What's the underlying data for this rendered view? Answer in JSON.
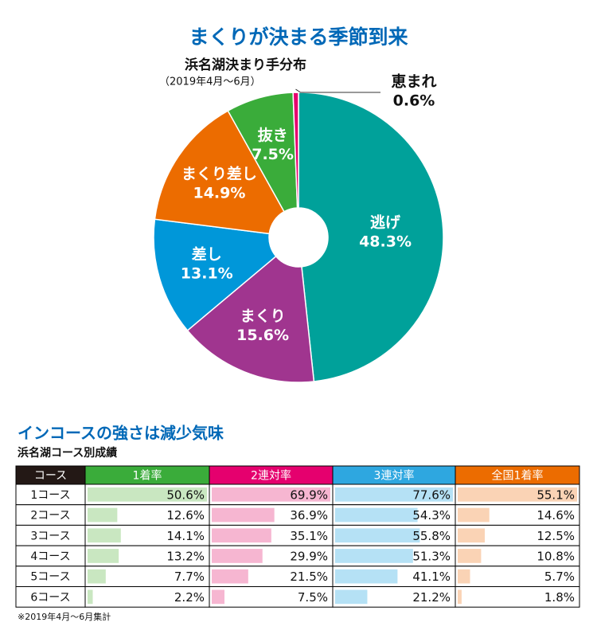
{
  "chart_data": {
    "type": "pie",
    "title": "まくりが決まる季節到来",
    "subtitle": "浜名湖決まり手分布",
    "note": "（2019年4月〜6月）",
    "categories": [
      "逃げ",
      "まくり",
      "差し",
      "まくり差し",
      "抜き",
      "恵まれ"
    ],
    "values": [
      48.3,
      15.6,
      13.1,
      14.9,
      7.5,
      0.6
    ],
    "value_labels": [
      "48.3%",
      "15.6%",
      "13.1%",
      "14.9%",
      "7.5%",
      "0.6%"
    ],
    "colors": [
      "#00a19a",
      "#a0358f",
      "#0097d9",
      "#ec6c00",
      "#3aac3a",
      "#e5006e"
    ]
  },
  "table": {
    "title": "インコースの強さは減少気味",
    "subtitle": "浜名湖コース別成績",
    "headers": [
      "コース",
      "1着率",
      "2連対率",
      "3連対率",
      "全国1着率"
    ],
    "header_colors": [
      "#231815",
      "#3aac3a",
      "#e5006e",
      "#2ea7e0",
      "#ec6c00"
    ],
    "bar_colors": [
      "#c9e7c1",
      "#f6b6d1",
      "#b5e1f5",
      "#fad3b5"
    ],
    "rows": [
      {
        "course": "1コース",
        "values": [
          50.6,
          69.9,
          77.6,
          55.1
        ],
        "value_labels": [
          "50.6%",
          "69.9%",
          "77.6%",
          "55.1%"
        ]
      },
      {
        "course": "2コース",
        "values": [
          12.6,
          36.9,
          54.3,
          14.6
        ],
        "value_labels": [
          "12.6%",
          "36.9%",
          "54.3%",
          "14.6%"
        ]
      },
      {
        "course": "3コース",
        "values": [
          14.1,
          35.1,
          55.8,
          12.5
        ],
        "value_labels": [
          "14.1%",
          "35.1%",
          "55.8%",
          "12.5%"
        ]
      },
      {
        "course": "4コース",
        "values": [
          13.2,
          29.9,
          51.3,
          10.8
        ],
        "value_labels": [
          "13.2%",
          "29.9%",
          "51.3%",
          "10.8%"
        ]
      },
      {
        "course": "5コース",
        "values": [
          7.7,
          21.5,
          41.1,
          5.7
        ],
        "value_labels": [
          "7.7%",
          "21.5%",
          "41.1%",
          "5.7%"
        ]
      },
      {
        "course": "6コース",
        "values": [
          2.2,
          7.5,
          21.2,
          1.8
        ],
        "value_labels": [
          "2.2%",
          "7.5%",
          "21.2%",
          "1.8%"
        ]
      }
    ],
    "footnote": "※2019年4月〜6月集計"
  }
}
